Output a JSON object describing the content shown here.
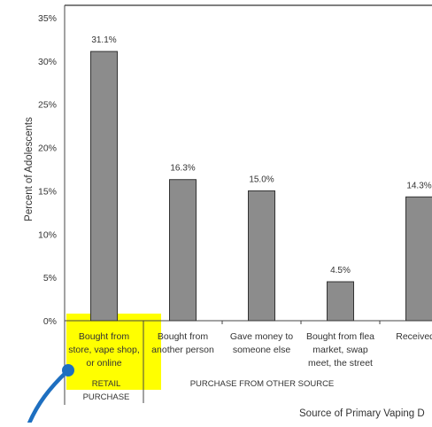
{
  "chart_data": {
    "type": "bar",
    "ylabel": "Percent of Adolescents",
    "xlabel": "Source of Primary Vaping D",
    "ylim": [
      0,
      35
    ],
    "yticks": [
      "0%",
      "5%",
      "10%",
      "15%",
      "20%",
      "25%",
      "30%",
      "35%"
    ],
    "grid": false,
    "bar_color": "#8c8c8c",
    "highlight_color": "#ffff00",
    "annotation_color": "#1e6fc0",
    "categories": [
      [
        "Bought from",
        "store, vape shop,",
        "or online"
      ],
      [
        "Bought from",
        "another person"
      ],
      [
        "Gave money to",
        "someone else"
      ],
      [
        "Bought from flea",
        "market, swap",
        "meet, the street"
      ],
      [
        "Received a"
      ]
    ],
    "values": [
      31.1,
      16.3,
      15.0,
      4.5,
      14.3
    ],
    "data_labels": [
      "31.1%",
      "16.3%",
      "15.0%",
      "4.5%",
      "14.3%"
    ],
    "groups": [
      {
        "lines": [
          "RETAIL",
          "PURCHASE"
        ]
      },
      {
        "lines": [
          "PURCHASE FROM OTHER SOURCE"
        ]
      }
    ]
  }
}
